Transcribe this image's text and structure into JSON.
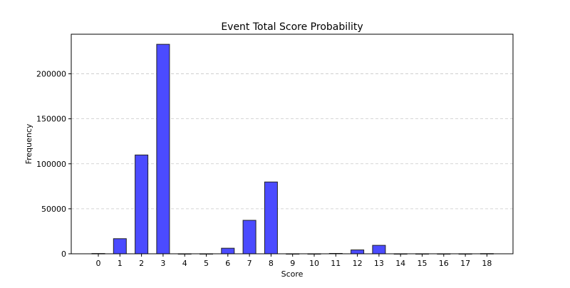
{
  "chart_data": {
    "type": "bar",
    "title": "Event Total Score Probability",
    "xlabel": "Score",
    "ylabel": "Frequency",
    "categories": [
      "0",
      "1",
      "2",
      "3",
      "4",
      "5",
      "6",
      "7",
      "8",
      "9",
      "10",
      "11",
      "12",
      "13",
      "14",
      "15",
      "16",
      "17",
      "18"
    ],
    "values": [
      300,
      16800,
      109800,
      232800,
      0,
      0,
      6200,
      37200,
      79800,
      0,
      0,
      400,
      4300,
      9400,
      0,
      0,
      0,
      0,
      200
    ],
    "ylim": [
      0,
      244000
    ],
    "yticks": [
      0,
      50000,
      100000,
      150000,
      200000
    ],
    "grid": "horizontal-dashed",
    "legend": "none",
    "colors": {
      "bar_fill": "#4b4bff",
      "bar_edge": "#222222",
      "grid": "#c8c8c8",
      "axis": "#000000"
    }
  }
}
